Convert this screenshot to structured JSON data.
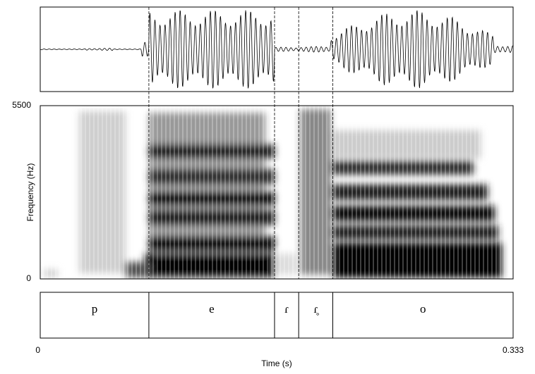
{
  "chart_data": {
    "type": "spectrogram",
    "xlabel": "Time (s)",
    "ylabel": "Frequency (Hz)",
    "xlim": [
      0,
      0.333
    ],
    "xticks": [
      0,
      0.333
    ],
    "ylim": [
      0,
      5500
    ],
    "yticks": [
      0,
      5500
    ],
    "boundaries": [
      0.0765,
      0.165,
      0.182,
      0.206
    ],
    "labels": [
      "p",
      "e",
      "ɾ",
      "ɾ̥",
      "o"
    ]
  }
}
